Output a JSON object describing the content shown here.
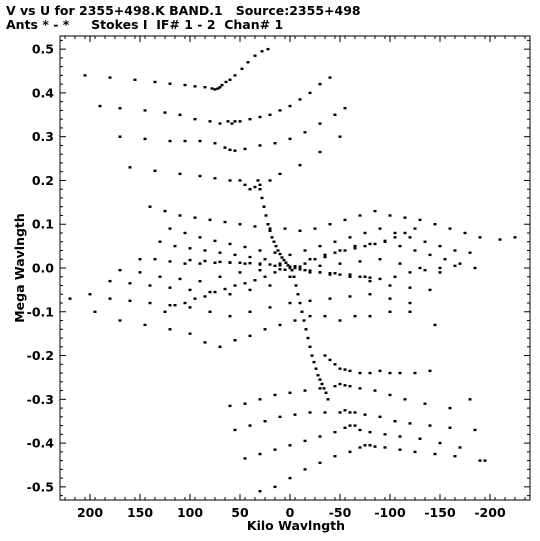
{
  "header": {
    "title_line1": "V vs U for 2355+498.K BAND.1   Source:2355+498",
    "title_line2": "Ants * - *     Stokes I  IF# 1 - 2  Chan# 1"
  },
  "chart_data": {
    "type": "scatter",
    "title": "V vs U for 2355+498.K BAND.1   Source:2355+498",
    "subtitle": "Ants * - *     Stokes I  IF# 1 - 2  Chan# 1",
    "xlabel": "Kilo Wavlngth",
    "ylabel": "Mega Wavlngth",
    "xlim": [
      230,
      -240
    ],
    "ylim": [
      -0.53,
      0.53
    ],
    "x_inverted": true,
    "xticks": [
      200,
      150,
      100,
      50,
      0,
      -50,
      -100,
      -150,
      -200
    ],
    "xtick_labels": [
      "200",
      "150",
      "100",
      "50",
      "0",
      "-50",
      "-100",
      "-150",
      "-200"
    ],
    "yticks": [
      0.5,
      0.4,
      0.3,
      0.2,
      0.1,
      0.0,
      -0.1,
      -0.2,
      -0.3,
      -0.4,
      -0.5
    ],
    "ytick_labels": [
      "0.5",
      "0.4",
      "0.3",
      "0.2",
      "0.1",
      "0.0",
      "-0.1",
      "-0.2",
      "-0.3",
      "-0.4",
      "-0.5"
    ],
    "grid": false,
    "marker_color": "#000000",
    "series": [
      {
        "name": "",
        "x": [
          22,
          28,
          35,
          42,
          48,
          55,
          60,
          64,
          68,
          70,
          72,
          75,
          78,
          85,
          95,
          105,
          120,
          135,
          155,
          180,
          205
        ],
        "y": [
          0.5,
          0.495,
          0.485,
          0.47,
          0.455,
          0.44,
          0.43,
          0.425,
          0.418,
          0.413,
          0.41,
          0.408,
          0.41,
          0.413,
          0.415,
          0.418,
          0.421,
          0.425,
          0.43,
          0.435,
          0.44
        ]
      },
      {
        "name": "",
        "x": [
          -40,
          -30,
          -20,
          -10,
          0,
          10,
          20,
          30,
          40,
          50,
          55,
          58,
          62,
          70,
          80,
          95,
          110,
          125,
          145,
          170,
          190
        ],
        "y": [
          0.435,
          0.42,
          0.4,
          0.385,
          0.37,
          0.36,
          0.35,
          0.345,
          0.34,
          0.335,
          0.335,
          0.33,
          0.335,
          0.33,
          0.335,
          0.34,
          0.35,
          0.355,
          0.36,
          0.365,
          0.37
        ]
      },
      {
        "name": "",
        "x": [
          -55,
          -45,
          -30,
          -15,
          0,
          15,
          30,
          45,
          55,
          60,
          65,
          75,
          90,
          105,
          120,
          145,
          170
        ],
        "y": [
          0.365,
          0.35,
          0.33,
          0.31,
          0.295,
          0.285,
          0.28,
          0.272,
          0.268,
          0.27,
          0.275,
          0.285,
          0.29,
          0.29,
          0.29,
          0.295,
          0.3
        ]
      },
      {
        "name": "",
        "x": [
          -50,
          -30,
          -10,
          10,
          20,
          30,
          35,
          40,
          45,
          50,
          60,
          75,
          90,
          110,
          135,
          160
        ],
        "y": [
          0.3,
          0.265,
          0.235,
          0.215,
          0.2,
          0.19,
          0.185,
          0.18,
          0.19,
          0.2,
          0.2,
          0.205,
          0.21,
          0.215,
          0.222,
          0.23
        ]
      },
      {
        "name": "",
        "x": [
          32,
          30,
          28,
          26,
          24,
          22,
          20,
          18,
          16,
          14,
          12,
          10,
          8,
          6,
          4,
          2,
          0
        ],
        "y": [
          0.2,
          0.18,
          0.16,
          0.14,
          0.12,
          0.1,
          0.085,
          0.07,
          0.06,
          0.05,
          0.04,
          0.032,
          0.024,
          0.018,
          0.012,
          0.006,
          0.002
        ]
      },
      {
        "name": "",
        "x": [
          140,
          125,
          110,
          95,
          80,
          65,
          50,
          35,
          20,
          5,
          -10,
          -25,
          -40,
          -55,
          -70,
          -85,
          -100,
          -115,
          -130,
          -145,
          -160,
          -175,
          -190,
          -210,
          -225
        ],
        "y": [
          0.14,
          0.13,
          0.12,
          0.115,
          0.11,
          0.105,
          0.1,
          0.095,
          0.09,
          0.09,
          0.085,
          0.09,
          0.1,
          0.11,
          0.12,
          0.13,
          0.12,
          0.115,
          0.11,
          0.1,
          0.09,
          0.08,
          0.07,
          0.065,
          0.07
        ]
      },
      {
        "name": "",
        "x": [
          120,
          105,
          90,
          75,
          60,
          45,
          30,
          15,
          0,
          -15,
          -30,
          -45,
          -60,
          -75,
          -90,
          -105,
          -120,
          -135,
          -150,
          -165,
          -180
        ],
        "y": [
          0.09,
          0.08,
          0.07,
          0.062,
          0.055,
          0.048,
          0.04,
          0.035,
          0.03,
          0.04,
          0.05,
          0.06,
          0.07,
          0.08,
          0.09,
          0.08,
          0.07,
          0.06,
          0.05,
          0.04,
          0.035
        ]
      },
      {
        "name": "",
        "x": [
          130,
          115,
          100,
          85,
          70,
          55,
          40,
          25,
          10,
          -5,
          -20,
          -35,
          -50,
          -65,
          -80,
          -95,
          -110,
          -125,
          -140,
          -155,
          -170,
          -185
        ],
        "y": [
          0.06,
          0.05,
          0.045,
          0.04,
          0.035,
          0.03,
          0.025,
          0.02,
          0.01,
          0.0,
          0.02,
          0.03,
          0.04,
          0.05,
          0.055,
          0.06,
          0.05,
          0.04,
          0.03,
          0.02,
          0.01,
          0.0
        ]
      },
      {
        "name": "",
        "x": [
          150,
          135,
          120,
          105,
          90,
          75,
          60,
          45,
          30,
          15,
          0,
          -15,
          -30,
          -45,
          -60,
          -75,
          -90,
          -105,
          -120,
          -135,
          -150,
          -165
        ],
        "y": [
          0.02,
          0.02,
          0.015,
          0.01,
          0.01,
          0.012,
          0.012,
          0.01,
          0.008,
          0.005,
          0.0,
          -0.005,
          -0.01,
          -0.012,
          -0.015,
          -0.02,
          -0.025,
          -0.02,
          -0.01,
          -0.005,
          0.0,
          0.005
        ]
      },
      {
        "name": "",
        "x": [
          170,
          150,
          130,
          110,
          90,
          70,
          50,
          30,
          10,
          -10,
          -30,
          -50,
          -70,
          -90,
          -110,
          -130,
          -150
        ],
        "y": [
          -0.005,
          -0.01,
          -0.02,
          -0.025,
          -0.03,
          -0.02,
          -0.01,
          -0.005,
          -0.003,
          0.003,
          0.005,
          0.01,
          0.015,
          0.02,
          0.01,
          0.0,
          -0.01
        ]
      },
      {
        "name": "",
        "x": [
          180,
          160,
          140,
          120,
          100,
          80,
          60,
          40,
          20,
          0,
          -20,
          -40,
          -60,
          -80,
          -100,
          -120,
          -140
        ],
        "y": [
          -0.03,
          -0.035,
          -0.04,
          -0.045,
          -0.05,
          -0.055,
          -0.06,
          -0.05,
          -0.04,
          -0.02,
          -0.01,
          -0.015,
          -0.02,
          -0.03,
          -0.04,
          -0.045,
          -0.05
        ]
      },
      {
        "name": "",
        "x": [
          200,
          180,
          160,
          140,
          120,
          100,
          80,
          60,
          40,
          20,
          0,
          -20,
          -40,
          -60,
          -80,
          -100,
          -120
        ],
        "y": [
          -0.06,
          -0.07,
          -0.075,
          -0.08,
          -0.085,
          -0.09,
          -0.1,
          -0.11,
          -0.1,
          -0.09,
          -0.08,
          -0.075,
          -0.07,
          -0.065,
          -0.06,
          -0.07,
          -0.08
        ]
      },
      {
        "name": "",
        "x": [
          220,
          195,
          170,
          145,
          120,
          100,
          85,
          70,
          55,
          40,
          25,
          10,
          -5,
          -20,
          -35,
          -50,
          -65,
          -80,
          -100,
          -120,
          -145
        ],
        "y": [
          -0.07,
          -0.1,
          -0.12,
          -0.13,
          -0.14,
          -0.15,
          -0.17,
          -0.18,
          -0.165,
          -0.155,
          -0.14,
          -0.13,
          -0.12,
          -0.11,
          -0.11,
          -0.12,
          -0.11,
          -0.11,
          -0.1,
          -0.1,
          -0.13
        ]
      },
      {
        "name": "",
        "x": [
          -125,
          -115,
          -105,
          -95,
          -85,
          -75,
          -65,
          -55,
          -45,
          -35,
          -25,
          -15,
          -5,
          5,
          15,
          25,
          35,
          45,
          55,
          65,
          75,
          85,
          95,
          105,
          115,
          125
        ],
        "y": [
          0.09,
          0.08,
          0.07,
          0.062,
          0.055,
          0.05,
          0.045,
          0.04,
          0.035,
          0.025,
          0.02,
          0.01,
          0.004,
          -0.004,
          -0.01,
          -0.02,
          -0.028,
          -0.035,
          -0.04,
          -0.048,
          -0.055,
          -0.065,
          -0.07,
          -0.08,
          -0.085,
          -0.1
        ]
      },
      {
        "name": "",
        "x": [
          100,
          85,
          70,
          60,
          50,
          40,
          30,
          20,
          10,
          0,
          -10,
          -20,
          -30,
          -40,
          -50,
          -60,
          -70,
          -80
        ],
        "y": [
          0.018,
          0.016,
          0.014,
          0.013,
          0.012,
          0.011,
          0.01,
          0.008,
          0.006,
          0.003,
          -0.003,
          -0.006,
          -0.01,
          -0.012,
          -0.015,
          -0.018,
          -0.02,
          -0.022
        ]
      },
      {
        "name": "",
        "x": [
          -2,
          -4,
          -6,
          -8,
          -10,
          -12,
          -14,
          -16,
          -18,
          -20,
          -22,
          -24,
          -26,
          -28,
          -30,
          -32,
          -34,
          -36,
          -38
        ],
        "y": [
          -0.005,
          -0.02,
          -0.04,
          -0.06,
          -0.08,
          -0.1,
          -0.12,
          -0.14,
          -0.16,
          -0.18,
          -0.2,
          -0.215,
          -0.23,
          -0.245,
          -0.255,
          -0.265,
          -0.275,
          -0.285,
          -0.3
        ]
      },
      {
        "name": "",
        "x": [
          -35,
          -40,
          -45,
          -50,
          -55,
          -60,
          -70,
          -80,
          -90,
          -100,
          -110,
          -125,
          -140
        ],
        "y": [
          -0.2,
          -0.21,
          -0.22,
          -0.23,
          -0.232,
          -0.235,
          -0.24,
          -0.24,
          -0.235,
          -0.24,
          -0.24,
          -0.24,
          -0.235
        ]
      },
      {
        "name": "",
        "x": [
          60,
          45,
          30,
          15,
          0,
          -15,
          -30,
          -45,
          -50,
          -55,
          -60,
          -70,
          -85,
          -100,
          -115,
          -135,
          -160,
          -180
        ],
        "y": [
          -0.315,
          -0.31,
          -0.3,
          -0.29,
          -0.285,
          -0.28,
          -0.275,
          -0.27,
          -0.265,
          -0.268,
          -0.27,
          -0.275,
          -0.28,
          -0.29,
          -0.3,
          -0.31,
          -0.32,
          -0.3
        ]
      },
      {
        "name": "",
        "x": [
          55,
          40,
          25,
          10,
          -5,
          -20,
          -35,
          -50,
          -55,
          -60,
          -65,
          -75,
          -90,
          -105,
          -120,
          -140,
          -160,
          -185
        ],
        "y": [
          -0.37,
          -0.36,
          -0.35,
          -0.34,
          -0.335,
          -0.33,
          -0.33,
          -0.33,
          -0.325,
          -0.33,
          -0.33,
          -0.335,
          -0.34,
          -0.35,
          -0.355,
          -0.36,
          -0.365,
          -0.37
        ]
      },
      {
        "name": "",
        "x": [
          45,
          30,
          15,
          0,
          -15,
          -30,
          -45,
          -55,
          -60,
          -65,
          -70,
          -80,
          -95,
          -110,
          -130,
          -150,
          -170,
          -195
        ],
        "y": [
          -0.435,
          -0.425,
          -0.415,
          -0.405,
          -0.395,
          -0.385,
          -0.375,
          -0.365,
          -0.36,
          -0.36,
          -0.37,
          -0.375,
          -0.38,
          -0.385,
          -0.39,
          -0.4,
          -0.41,
          -0.44
        ]
      },
      {
        "name": "",
        "x": [
          30,
          15,
          0,
          -15,
          -30,
          -45,
          -60,
          -70,
          -75,
          -80,
          -85,
          -95,
          -110,
          -125,
          -145,
          -165,
          -190
        ],
        "y": [
          -0.51,
          -0.5,
          -0.48,
          -0.46,
          -0.445,
          -0.43,
          -0.42,
          -0.41,
          -0.405,
          -0.405,
          -0.408,
          -0.41,
          -0.415,
          -0.42,
          -0.425,
          -0.43,
          -0.44
        ]
      }
    ]
  }
}
